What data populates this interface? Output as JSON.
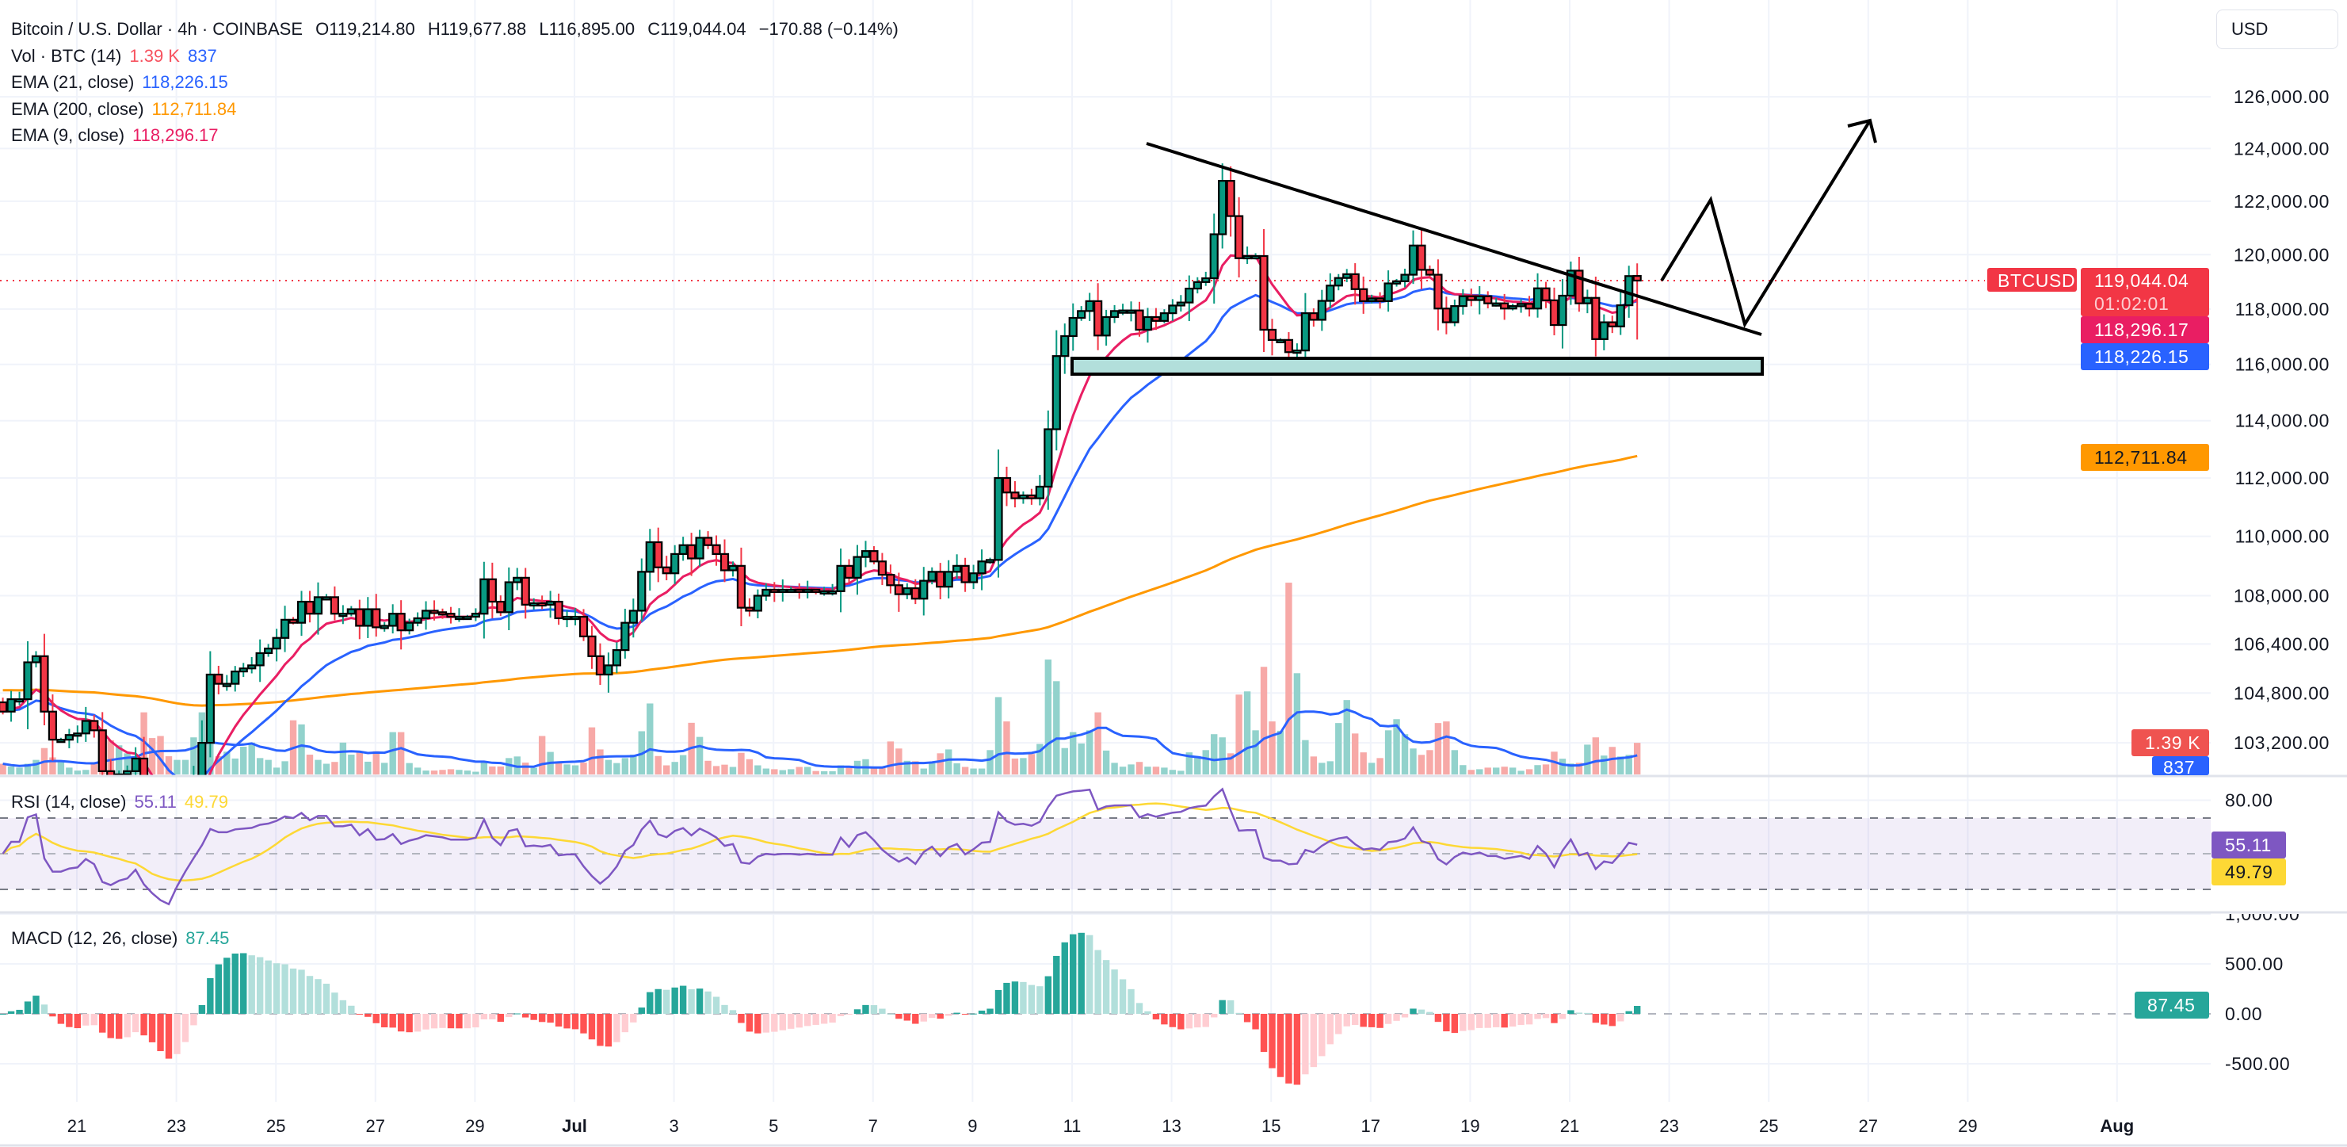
{
  "header": {
    "symbol_title": "Bitcoin / U.S. Dollar · 4h · COINBASE",
    "open": "O119,214.80",
    "high": "H119,677.88",
    "low": "L116,895.00",
    "close": "C119,044.04",
    "change": "−170.88 (−0.14%)"
  },
  "indicators": {
    "volume": {
      "label": "Vol · BTC (14)",
      "value": "1.39 K",
      "ma_value": "837"
    },
    "ema21": {
      "label": "EMA (21, close)",
      "value": "118,226.15",
      "color": "#2962FF"
    },
    "ema200": {
      "label": "EMA (200, close)",
      "value": "112,711.84",
      "color": "#FF9800"
    },
    "ema9": {
      "label": "EMA (9, close)",
      "value": "118,296.17",
      "color": "#E91E63"
    },
    "rsi": {
      "label": "RSI (14, close)",
      "value": "55.11",
      "ma_value": "49.79",
      "color": "#7E57C2",
      "ma_color": "#FDD835"
    },
    "macd": {
      "label": "MACD (12, 26, close)",
      "value": "87.45",
      "color": "#26A69A"
    }
  },
  "price_axis": {
    "currency_button": "USD",
    "ticks": [
      {
        "value": 126000,
        "label": "126,000.00"
      },
      {
        "value": 124000,
        "label": "124,000.00"
      },
      {
        "value": 122000,
        "label": "122,000.00"
      },
      {
        "value": 120000,
        "label": "120,000.00"
      },
      {
        "value": 118000,
        "label": "118,000.00"
      },
      {
        "value": 116000,
        "label": "116,000.00"
      },
      {
        "value": 114000,
        "label": "114,000.00"
      },
      {
        "value": 112000,
        "label": "112,000.00"
      },
      {
        "value": 110000,
        "label": "110,000.00"
      },
      {
        "value": 108000,
        "label": "108,000.00"
      },
      {
        "value": 106400,
        "label": "106,400.00"
      },
      {
        "value": 104800,
        "label": "104,800.00"
      },
      {
        "value": 103200,
        "label": "103,200.00"
      }
    ],
    "symbol_badge": "BTCUSD",
    "last_price": "119,044.04",
    "countdown": "01:02:01",
    "ema9_badge": "118,296.17",
    "ema21_badge": "118,226.15",
    "ema200_badge": "112,711.84",
    "volume_badge": "1.39 K",
    "volume_ma_badge": "837",
    "rsi_ticks": [
      {
        "value": 80,
        "label": "80.00"
      }
    ],
    "rsi_badge": "55.11",
    "rsi_ma_badge": "49.79",
    "macd_ticks": [
      {
        "value": 1000,
        "label": "1,000.00"
      },
      {
        "value": 500,
        "label": "500.00"
      },
      {
        "value": 0,
        "label": "0.00"
      },
      {
        "value": -500,
        "label": "-500.00"
      }
    ],
    "macd_badge": "87.45"
  },
  "time_axis": {
    "labels": [
      "21",
      "23",
      "25",
      "27",
      "29",
      "Jul",
      "3",
      "5",
      "7",
      "9",
      "11",
      "13",
      "15",
      "17",
      "19",
      "21",
      "23",
      "25",
      "27",
      "29",
      "Aug"
    ]
  },
  "colors": {
    "up": "#089981",
    "down": "#F23645",
    "volume_up": "#92D2CC",
    "volume_down": "#F7A9A7",
    "volume_ma": "#2962FF",
    "macd_up_strong": "#26A69A",
    "macd_up_weak": "#B2DFDB",
    "macd_down_strong": "#FF5252",
    "macd_down_weak": "#FFCDD2",
    "drawing": "#000000",
    "support_zone": "#B2DFDB"
  },
  "chart_data": {
    "type": "candlestick",
    "interval": "4h",
    "scale": "log",
    "last_candle": {
      "open": 119214.8,
      "high": 119677.88,
      "low": 116895.0,
      "close": 119044.04,
      "volume": 1390
    },
    "closes": [
      104200,
      104600,
      104600,
      105800,
      106000,
      104200,
      103300,
      103300,
      103450,
      103500,
      103900,
      103600,
      102300,
      102000,
      102200,
      102300,
      102700,
      101500,
      100500,
      99500,
      98800,
      99800,
      100800,
      101900,
      103200,
      105400,
      105100,
      105100,
      105500,
      105600,
      105700,
      106100,
      106250,
      106600,
      107200,
      107100,
      107800,
      107400,
      107950,
      107950,
      107400,
      107400,
      107550,
      107000,
      107550,
      106950,
      107000,
      107400,
      106850,
      107100,
      107250,
      107500,
      107450,
      107400,
      107300,
      107300,
      107300,
      107400,
      108550,
      107800,
      107450,
      108450,
      108600,
      107700,
      107750,
      107700,
      107800,
      107250,
      107300,
      107300,
      106650,
      106000,
      105400,
      105700,
      106200,
      107100,
      107500,
      108800,
      109800,
      108950,
      108750,
      109400,
      109700,
      109250,
      109950,
      109700,
      109400,
      108850,
      109000,
      107600,
      107500,
      108000,
      108200,
      108150,
      108200,
      108200,
      108150,
      108200,
      108150,
      108150,
      108150,
      109000,
      108600,
      109300,
      109500,
      109150,
      108700,
      108350,
      108050,
      108250,
      107900,
      108500,
      108800,
      108300,
      108800,
      109000,
      108450,
      108750,
      109150,
      109200,
      112000,
      111500,
      111300,
      111400,
      111300,
      111700,
      113700,
      116300,
      117020,
      117680,
      117930,
      118290,
      117040,
      117710,
      117930,
      117950,
      117950,
      117250,
      117710,
      117570,
      117850,
      118130,
      118240,
      118750,
      118990,
      119130,
      120760,
      122770,
      121440,
      119870,
      119950,
      119950,
      117250,
      116880,
      116880,
      116440,
      116500,
      117850,
      117610,
      118300,
      118860,
      119140,
      119280,
      118730,
      118290,
      118390,
      118290,
      118940,
      119020,
      119260,
      120340,
      119440,
      119260,
      118020,
      117520,
      118110,
      118470,
      118330,
      118470,
      118210,
      118210,
      118020,
      118110,
      118190,
      118020,
      118760,
      118320,
      117420,
      118490,
      119410,
      118210,
      118410,
      116910,
      117520,
      117370,
      118140,
      119210,
      119044.04
    ],
    "volumes": [
      470,
      350,
      300,
      470,
      640,
      1160,
      750,
      580,
      300,
      170,
      200,
      470,
      1500,
      1500,
      1280,
      930,
      700,
      2730,
      1600,
      1690,
      800,
      640,
      640,
      1630,
      2730,
      1500,
      800,
      1000,
      700,
      1220,
      1400,
      720,
      640,
      300,
      580,
      2380,
      2200,
      870,
      640,
      470,
      550,
      1400,
      870,
      1000,
      560,
      1020,
      510,
      1860,
      1860,
      500,
      300,
      170,
      170,
      200,
      230,
      200,
      170,
      120,
      520,
      350,
      350,
      720,
      790,
      520,
      290,
      1690,
      990,
      520,
      440,
      400,
      520,
      2070,
      1100,
      640,
      500,
      720,
      870,
      1900,
      3120,
      810,
      400,
      550,
      850,
      2270,
      1650,
      600,
      370,
      430,
      330,
      950,
      670,
      400,
      260,
      230,
      190,
      230,
      330,
      330,
      150,
      140,
      140,
      400,
      310,
      600,
      670,
      290,
      290,
      1450,
      1140,
      600,
      580,
      260,
      490,
      930,
      1100,
      490,
      330,
      260,
      260,
      1070,
      3400,
      2330,
      700,
      720,
      900,
      1340,
      5050,
      4100,
      1160,
      1860,
      1360,
      1940,
      2730,
      1050,
      510,
      340,
      440,
      550,
      340,
      340,
      300,
      200,
      160,
      970,
      810,
      1070,
      1770,
      1630,
      930,
      3510,
      3650,
      1940,
      4730,
      2330,
      1920,
      8430,
      4450,
      1510,
      790,
      510,
      580,
      2260,
      3270,
      1800,
      970,
      510,
      720,
      1940,
      2430,
      1770,
      1140,
      860,
      1070,
      2260,
      2330,
      1070,
      410,
      200,
      230,
      300,
      300,
      340,
      300,
      160,
      230,
      410,
      440,
      1000,
      690,
      480,
      510,
      1310,
      1630,
      830,
      1210,
      790,
      860,
      1390
    ]
  }
}
